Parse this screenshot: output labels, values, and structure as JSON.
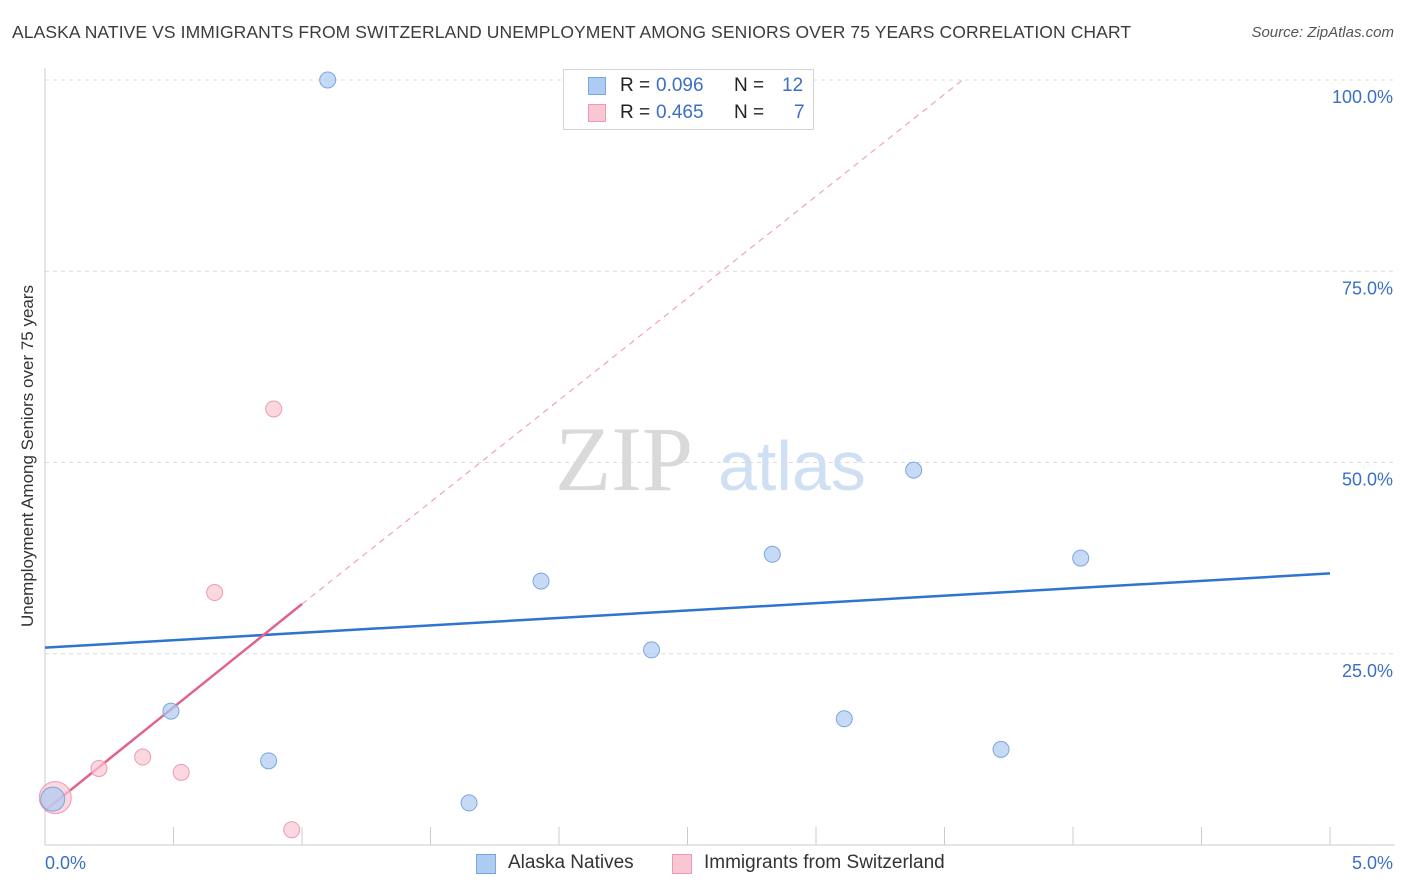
{
  "title": "ALASKA NATIVE VS IMMIGRANTS FROM SWITZERLAND UNEMPLOYMENT AMONG SENIORS OVER 75 YEARS CORRELATION CHART",
  "source": "Source: ZipAtlas.com",
  "watermark": {
    "zip": "ZIP",
    "atlas": "atlas"
  },
  "legend_top": [
    {
      "r_label": "R =",
      "r_value": "0.096",
      "n_label": "N =",
      "n_value": "12",
      "color": "#aecbf2",
      "border": "#7aa6e0"
    },
    {
      "r_label": "R =",
      "r_value": "0.465",
      "n_label": "N =",
      "n_value": "7",
      "color": "#f9c6d3",
      "border": "#ee9ab0"
    }
  ],
  "chart_data": {
    "type": "scatter",
    "xlabel": "",
    "ylabel": "Unemployment Among Seniors over 75 years",
    "xlim": [
      0,
      5
    ],
    "ylim": [
      0,
      100
    ],
    "x_tick_labels": [
      "0.0%",
      "5.0%"
    ],
    "y_tick_labels": [
      "25.0%",
      "50.0%",
      "75.0%",
      "100.0%"
    ],
    "y_ticks": [
      25,
      50,
      75,
      100
    ],
    "grid": true,
    "legend_position": "top-center",
    "series": [
      {
        "name": "Alaska Natives",
        "color": "#aecbf2",
        "stroke": "#7aa6e0",
        "line_color": "#2f74d0",
        "points": [
          [
            0.03,
            6.0
          ],
          [
            0.49,
            17.5
          ],
          [
            0.87,
            11.0
          ],
          [
            1.1,
            100.0
          ],
          [
            1.65,
            5.5
          ],
          [
            1.93,
            34.5
          ],
          [
            2.36,
            25.5
          ],
          [
            2.83,
            38.0
          ],
          [
            3.11,
            16.5
          ],
          [
            3.38,
            49.0
          ],
          [
            3.72,
            12.5
          ],
          [
            4.03,
            37.5
          ]
        ],
        "trend": {
          "x": [
            0,
            5
          ],
          "y": [
            25.8,
            35.5
          ]
        }
      },
      {
        "name": "Immigrants from Switzerland",
        "color": "#f9c6d3",
        "stroke": "#ee9ab0",
        "line_color": "#e2628b",
        "points": [
          [
            0.04,
            6.2
          ],
          [
            0.21,
            10.0
          ],
          [
            0.38,
            11.5
          ],
          [
            0.53,
            9.5
          ],
          [
            0.66,
            33.0
          ],
          [
            0.89,
            57.0
          ],
          [
            0.96,
            2.0
          ]
        ],
        "trend": {
          "x": [
            0,
            1.0
          ],
          "y": [
            4.5,
            31.5
          ]
        },
        "trend_extension": {
          "x": [
            1.0,
            3.57
          ],
          "y": [
            31.5,
            100.0
          ]
        }
      }
    ]
  }
}
